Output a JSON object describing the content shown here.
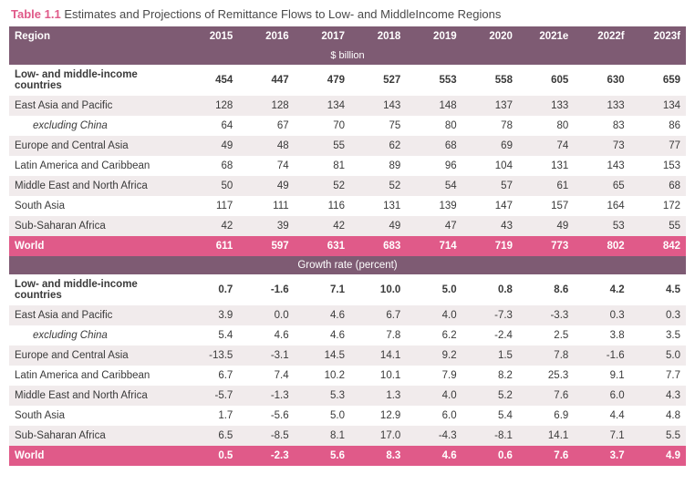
{
  "title_prefix": "Table 1.1",
  "title_text": "Estimates and Projections of Remittance Flows to Low- and MiddleIncome Regions",
  "columns": [
    "Region",
    "2015",
    "2016",
    "2017",
    "2018",
    "2019",
    "2020",
    "2021e",
    "2022f",
    "2023f"
  ],
  "subheader1": "$ billion",
  "subheader2": "Growth rate (percent)",
  "colors": {
    "header_bg": "#7e5b73",
    "world_bg": "#e05a89",
    "stripe_bg": "#f1ebec",
    "title_accent": "#e05a89"
  },
  "section1": [
    {
      "style": "bold plain",
      "label": "Low- and middle-income countries",
      "v": [
        "454",
        "447",
        "479",
        "527",
        "553",
        "558",
        "605",
        "630",
        "659"
      ]
    },
    {
      "style": "stripe",
      "label": "East Asia and Pacific",
      "v": [
        "128",
        "128",
        "134",
        "143",
        "148",
        "137",
        "133",
        "133",
        "134"
      ]
    },
    {
      "style": "plain",
      "label": "excluding China",
      "indent": true,
      "v": [
        "64",
        "67",
        "70",
        "75",
        "80",
        "78",
        "80",
        "83",
        "86"
      ]
    },
    {
      "style": "stripe",
      "label": "Europe and Central Asia",
      "v": [
        "49",
        "48",
        "55",
        "62",
        "68",
        "69",
        "74",
        "73",
        "77"
      ]
    },
    {
      "style": "plain",
      "label": "Latin America and Caribbean",
      "v": [
        "68",
        "74",
        "81",
        "89",
        "96",
        "104",
        "131",
        "143",
        "153"
      ]
    },
    {
      "style": "stripe",
      "label": "Middle East and North Africa",
      "v": [
        "50",
        "49",
        "52",
        "52",
        "54",
        "57",
        "61",
        "65",
        "68"
      ]
    },
    {
      "style": "plain",
      "label": "South Asia",
      "v": [
        "117",
        "111",
        "116",
        "131",
        "139",
        "147",
        "157",
        "164",
        "172"
      ]
    },
    {
      "style": "stripe",
      "label": "Sub-Saharan Africa",
      "v": [
        "42",
        "39",
        "42",
        "49",
        "47",
        "43",
        "49",
        "53",
        "55"
      ]
    },
    {
      "style": "world",
      "label": "World",
      "v": [
        "611",
        "597",
        "631",
        "683",
        "714",
        "719",
        "773",
        "802",
        "842"
      ]
    }
  ],
  "section2": [
    {
      "style": "bold plain",
      "label": "Low- and middle-income countries",
      "v": [
        "0.7",
        "-1.6",
        "7.1",
        "10.0",
        "5.0",
        "0.8",
        "8.6",
        "4.2",
        "4.5"
      ]
    },
    {
      "style": "stripe",
      "label": "East Asia and Pacific",
      "v": [
        "3.9",
        "0.0",
        "4.6",
        "6.7",
        "4.0",
        "-7.3",
        "-3.3",
        "0.3",
        "0.3"
      ]
    },
    {
      "style": "plain",
      "label": "excluding China",
      "indent": true,
      "v": [
        "5.4",
        "4.6",
        "4.6",
        "7.8",
        "6.2",
        "-2.4",
        "2.5",
        "3.8",
        "3.5"
      ]
    },
    {
      "style": "stripe",
      "label": "Europe and Central Asia",
      "v": [
        "-13.5",
        "-3.1",
        "14.5",
        "14.1",
        "9.2",
        "1.5",
        "7.8",
        "-1.6",
        "5.0"
      ]
    },
    {
      "style": "plain",
      "label": "Latin America and Caribbean",
      "v": [
        "6.7",
        "7.4",
        "10.2",
        "10.1",
        "7.9",
        "8.2",
        "25.3",
        "9.1",
        "7.7"
      ]
    },
    {
      "style": "stripe",
      "label": "Middle East and North Africa",
      "v": [
        "-5.7",
        "-1.3",
        "5.3",
        "1.3",
        "4.0",
        "5.2",
        "7.6",
        "6.0",
        "4.3"
      ]
    },
    {
      "style": "plain",
      "label": "South Asia",
      "v": [
        "1.7",
        "-5.6",
        "5.0",
        "12.9",
        "6.0",
        "5.4",
        "6.9",
        "4.4",
        "4.8"
      ]
    },
    {
      "style": "stripe",
      "label": "Sub-Saharan Africa",
      "v": [
        "6.5",
        "-8.5",
        "8.1",
        "17.0",
        "-4.3",
        "-8.1",
        "14.1",
        "7.1",
        "5.5"
      ]
    },
    {
      "style": "world",
      "label": "World",
      "v": [
        "0.5",
        "-2.3",
        "5.6",
        "8.3",
        "4.6",
        "0.6",
        "7.6",
        "3.7",
        "4.9"
      ]
    }
  ]
}
